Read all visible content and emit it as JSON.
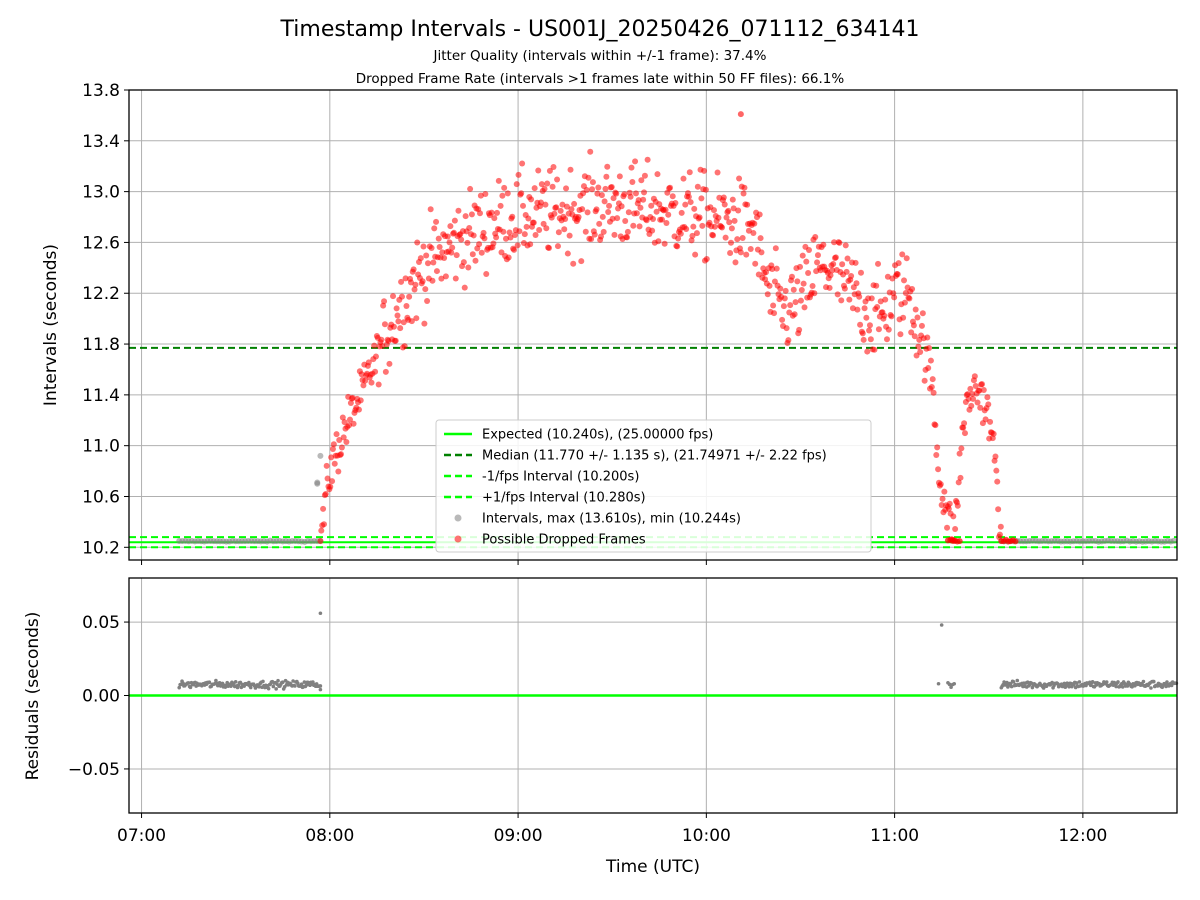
{
  "figure": {
    "title": "Timestamp Intervals - US001J_20250426_071112_634141",
    "subtitle1": "Jitter Quality (intervals within +/-1 frame): 37.4%",
    "subtitle2": "Dropped Frame Rate (intervals >1 frames late within 50 FF files): 66.1%"
  },
  "colors": {
    "expected": "#00ff00",
    "median": "#008000",
    "interval_band": "#00ff00",
    "normal_points": "#808080",
    "dropped_points": "#ff0000",
    "grid": "#b0b0b0",
    "residual_zero": "#00ff00"
  },
  "chart_data": [
    {
      "type": "scatter",
      "panel": "top",
      "ylabel": "Intervals (seconds)",
      "ylim": [
        10.1,
        13.8
      ],
      "xlim": [
        "06:56",
        "12:30"
      ],
      "yticks": [
        "10.2",
        "10.6",
        "11.0",
        "11.4",
        "11.8",
        "12.2",
        "12.6",
        "13.0",
        "13.4",
        "13.8"
      ],
      "ytick_values": [
        10.2,
        10.6,
        11.0,
        11.4,
        11.8,
        12.2,
        12.6,
        13.0,
        13.4,
        13.8
      ],
      "grid": true,
      "legend_position": "lower center",
      "legend": [
        {
          "label": "Expected (10.240s), (25.00000 fps)",
          "style": "solid",
          "color": "#00ff00"
        },
        {
          "label": "Median (11.770 +/- 1.135 s), (21.74971 +/- 2.22 fps)",
          "style": "dashed",
          "color": "#008000"
        },
        {
          "label": "-1/fps Interval (10.200s)",
          "style": "dashed",
          "color": "#00ff00"
        },
        {
          "label": "+1/fps Interval (10.280s)",
          "style": "dashed",
          "color": "#00ff00"
        },
        {
          "label": "Intervals, max (13.610s), min (10.244s)",
          "style": "marker",
          "color": "#808080"
        },
        {
          "label": "Possible Dropped Frames",
          "style": "marker",
          "color": "#ff0000"
        }
      ],
      "reference_lines": [
        {
          "name": "Expected",
          "y": 10.24
        },
        {
          "name": "Median",
          "y": 11.77
        },
        {
          "name": "-1/fps Interval",
          "y": 10.2
        },
        {
          "name": "+1/fps Interval",
          "y": 10.28
        }
      ],
      "series": [
        {
          "name": "Intervals",
          "segments": [
            {
              "x_start": "07:12",
              "x_end": "07:57",
              "y": 10.248
            },
            {
              "x_start": "11:34",
              "x_end": "12:30",
              "y": 10.248
            }
          ],
          "extra_points": [
            {
              "x": "07:56",
              "y": 10.7
            },
            {
              "x": "07:57",
              "y": 10.92
            },
            {
              "x": "07:56",
              "y": 10.71
            }
          ]
        },
        {
          "name": "Possible Dropped Frames",
          "envelope": [
            {
              "x": "07:57",
              "y": 10.27
            },
            {
              "x": "08:00",
              "y": 10.8
            },
            {
              "x": "08:05",
              "y": 11.15
            },
            {
              "x": "08:10",
              "y": 11.4
            },
            {
              "x": "08:15",
              "y": 11.7
            },
            {
              "x": "08:20",
              "y": 12.0
            },
            {
              "x": "08:25",
              "y": 12.2
            },
            {
              "x": "08:30",
              "y": 12.4
            },
            {
              "x": "08:40",
              "y": 12.6
            },
            {
              "x": "08:50",
              "y": 12.72
            },
            {
              "x": "09:00",
              "y": 12.8
            },
            {
              "x": "09:15",
              "y": 12.85
            },
            {
              "x": "09:30",
              "y": 12.9
            },
            {
              "x": "09:45",
              "y": 12.85
            },
            {
              "x": "10:00",
              "y": 12.8
            },
            {
              "x": "10:10",
              "y": 12.75
            },
            {
              "x": "10:15",
              "y": 12.7
            },
            {
              "x": "10:20",
              "y": 12.2
            },
            {
              "x": "10:25",
              "y": 12.05
            },
            {
              "x": "10:30",
              "y": 12.15
            },
            {
              "x": "10:35",
              "y": 12.4
            },
            {
              "x": "10:40",
              "y": 12.4
            },
            {
              "x": "10:45",
              "y": 12.25
            },
            {
              "x": "10:50",
              "y": 12.1
            },
            {
              "x": "10:55",
              "y": 12.0
            },
            {
              "x": "11:00",
              "y": 12.2
            },
            {
              "x": "11:05",
              "y": 12.2
            },
            {
              "x": "11:08",
              "y": 11.9
            },
            {
              "x": "11:12",
              "y": 11.5
            },
            {
              "x": "11:14",
              "y": 10.8
            },
            {
              "x": "11:17",
              "y": 10.45
            },
            {
              "x": "11:19",
              "y": 10.26
            },
            {
              "x": "11:22",
              "y": 11.2
            },
            {
              "x": "11:25",
              "y": 11.45
            },
            {
              "x": "11:28",
              "y": 11.4
            },
            {
              "x": "11:30",
              "y": 11.2
            },
            {
              "x": "11:32",
              "y": 10.9
            },
            {
              "x": "11:34",
              "y": 10.3
            }
          ],
          "flat_segments": [
            {
              "x_start": "11:17",
              "x_end": "11:21",
              "y": 10.25
            },
            {
              "x_start": "11:34",
              "x_end": "11:39",
              "y": 10.25
            }
          ],
          "max_point": {
            "x": "10:11",
            "y": 13.61
          }
        }
      ]
    },
    {
      "type": "scatter",
      "panel": "bottom",
      "xlabel": "Time (UTC)",
      "ylabel": "Residuals (seconds)",
      "ylim": [
        -0.08,
        0.08
      ],
      "yticks": [
        "0.05",
        "0.00",
        "−0.05"
      ],
      "ytick_values": [
        0.05,
        0.0,
        -0.05
      ],
      "xticks": [
        "07:00",
        "08:00",
        "09:00",
        "10:00",
        "11:00",
        "12:00"
      ],
      "grid": true,
      "reference_lines": [
        {
          "name": "Zero",
          "y": 0.0
        }
      ],
      "series": [
        {
          "name": "Residuals",
          "segments": [
            {
              "x_start": "07:12",
              "x_end": "07:57",
              "y": 0.0075
            },
            {
              "x_start": "11:17",
              "x_end": "11:19",
              "y": 0.0075
            },
            {
              "x_start": "11:34",
              "x_end": "12:30",
              "y": 0.0075
            }
          ],
          "extra_points": [
            {
              "x": "07:57",
              "y": 0.056
            },
            {
              "x": "07:57",
              "y": 0.004
            },
            {
              "x": "11:15",
              "y": 0.048
            },
            {
              "x": "11:14",
              "y": 0.008
            }
          ]
        }
      ]
    }
  ]
}
